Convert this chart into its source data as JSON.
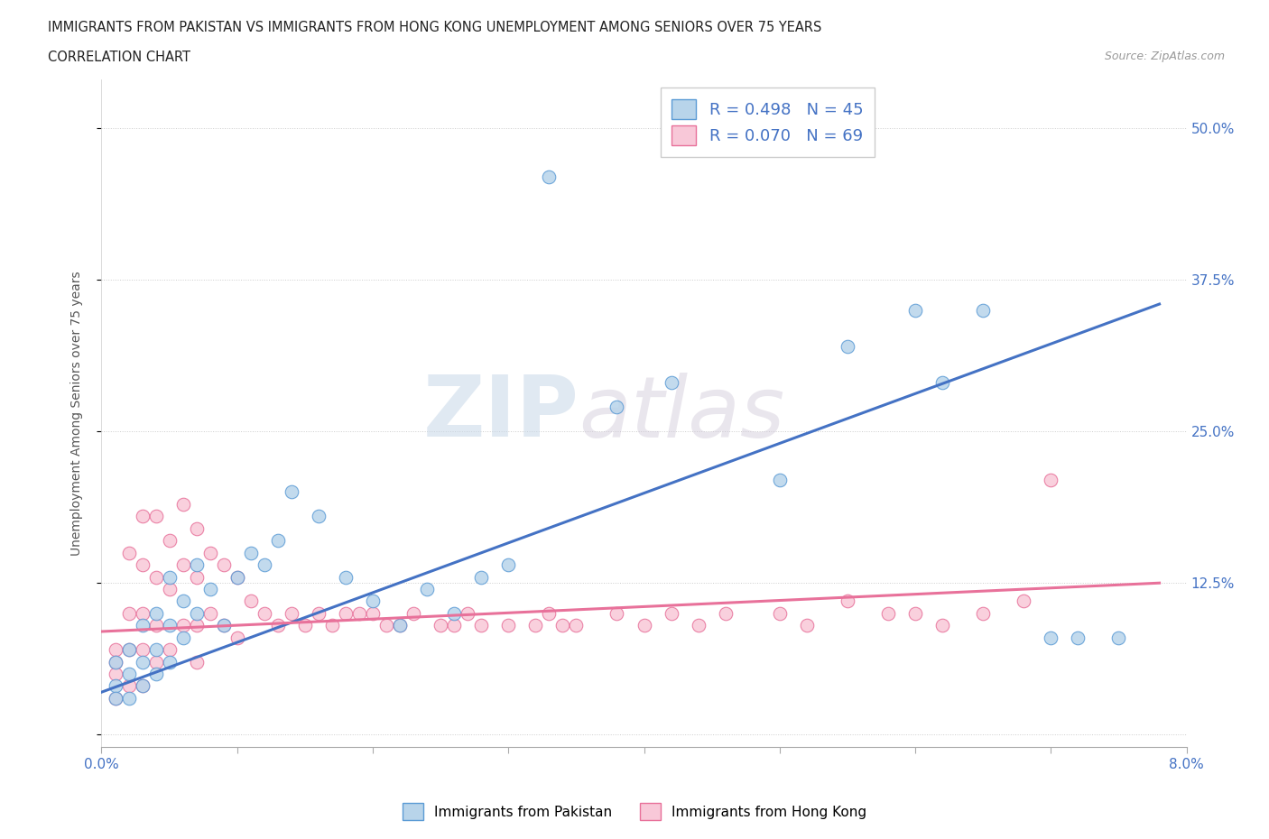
{
  "title_line1": "IMMIGRANTS FROM PAKISTAN VS IMMIGRANTS FROM HONG KONG UNEMPLOYMENT AMONG SENIORS OVER 75 YEARS",
  "title_line2": "CORRELATION CHART",
  "source_text": "Source: ZipAtlas.com",
  "ylabel": "Unemployment Among Seniors over 75 years",
  "xlim": [
    0.0,
    0.08
  ],
  "ylim": [
    -0.01,
    0.54
  ],
  "yticks": [
    0.0,
    0.125,
    0.25,
    0.375,
    0.5
  ],
  "ytick_labels": [
    "",
    "12.5%",
    "25.0%",
    "37.5%",
    "50.0%"
  ],
  "xticks": [
    0.0,
    0.01,
    0.02,
    0.03,
    0.04,
    0.05,
    0.06,
    0.07,
    0.08
  ],
  "xtick_labels": [
    "0.0%",
    "",
    "",
    "",
    "",
    "",
    "",
    "",
    "8.0%"
  ],
  "legend_label1": "Immigrants from Pakistan",
  "legend_label2": "Immigrants from Hong Kong",
  "R1": 0.498,
  "N1": 45,
  "R2": 0.07,
  "N2": 69,
  "color_pakistan": "#b8d4ea",
  "color_hongkong": "#f8c8d8",
  "edge_color_pakistan": "#5b9bd5",
  "edge_color_hongkong": "#e8719a",
  "line_color_pakistan": "#4472c4",
  "line_color_hongkong": "#e8719a",
  "watermark_color": "#d0d8e8",
  "background_color": "#ffffff",
  "pakistan_x": [
    0.001,
    0.001,
    0.001,
    0.002,
    0.002,
    0.002,
    0.003,
    0.003,
    0.003,
    0.004,
    0.004,
    0.004,
    0.005,
    0.005,
    0.005,
    0.006,
    0.006,
    0.007,
    0.007,
    0.008,
    0.009,
    0.01,
    0.011,
    0.012,
    0.013,
    0.014,
    0.016,
    0.018,
    0.02,
    0.022,
    0.024,
    0.026,
    0.028,
    0.03,
    0.033,
    0.038,
    0.042,
    0.05,
    0.055,
    0.06,
    0.062,
    0.065,
    0.07,
    0.072,
    0.075
  ],
  "pakistan_y": [
    0.06,
    0.04,
    0.03,
    0.07,
    0.05,
    0.03,
    0.09,
    0.06,
    0.04,
    0.1,
    0.07,
    0.05,
    0.13,
    0.09,
    0.06,
    0.11,
    0.08,
    0.14,
    0.1,
    0.12,
    0.09,
    0.13,
    0.15,
    0.14,
    0.16,
    0.2,
    0.18,
    0.13,
    0.11,
    0.09,
    0.12,
    0.1,
    0.13,
    0.14,
    0.46,
    0.27,
    0.29,
    0.21,
    0.32,
    0.35,
    0.29,
    0.35,
    0.08,
    0.08,
    0.08
  ],
  "hongkong_x": [
    0.001,
    0.001,
    0.001,
    0.001,
    0.002,
    0.002,
    0.002,
    0.002,
    0.003,
    0.003,
    0.003,
    0.003,
    0.003,
    0.004,
    0.004,
    0.004,
    0.004,
    0.005,
    0.005,
    0.005,
    0.006,
    0.006,
    0.006,
    0.007,
    0.007,
    0.007,
    0.007,
    0.008,
    0.008,
    0.009,
    0.009,
    0.01,
    0.01,
    0.011,
    0.012,
    0.013,
    0.014,
    0.015,
    0.016,
    0.017,
    0.018,
    0.019,
    0.02,
    0.021,
    0.022,
    0.023,
    0.025,
    0.026,
    0.027,
    0.028,
    0.03,
    0.032,
    0.033,
    0.034,
    0.035,
    0.038,
    0.04,
    0.042,
    0.044,
    0.046,
    0.05,
    0.052,
    0.055,
    0.058,
    0.06,
    0.062,
    0.065,
    0.068,
    0.07
  ],
  "hongkong_y": [
    0.07,
    0.06,
    0.05,
    0.03,
    0.15,
    0.1,
    0.07,
    0.04,
    0.18,
    0.14,
    0.1,
    0.07,
    0.04,
    0.18,
    0.13,
    0.09,
    0.06,
    0.16,
    0.12,
    0.07,
    0.19,
    0.14,
    0.09,
    0.17,
    0.13,
    0.09,
    0.06,
    0.15,
    0.1,
    0.14,
    0.09,
    0.13,
    0.08,
    0.11,
    0.1,
    0.09,
    0.1,
    0.09,
    0.1,
    0.09,
    0.1,
    0.1,
    0.1,
    0.09,
    0.09,
    0.1,
    0.09,
    0.09,
    0.1,
    0.09,
    0.09,
    0.09,
    0.1,
    0.09,
    0.09,
    0.1,
    0.09,
    0.1,
    0.09,
    0.1,
    0.1,
    0.09,
    0.11,
    0.1,
    0.1,
    0.09,
    0.1,
    0.11,
    0.21
  ],
  "pk_trend_x0": 0.0,
  "pk_trend_y0": 0.035,
  "pk_trend_x1": 0.078,
  "pk_trend_y1": 0.355,
  "hk_trend_x0": 0.0,
  "hk_trend_y0": 0.085,
  "hk_trend_x1": 0.078,
  "hk_trend_y1": 0.125
}
